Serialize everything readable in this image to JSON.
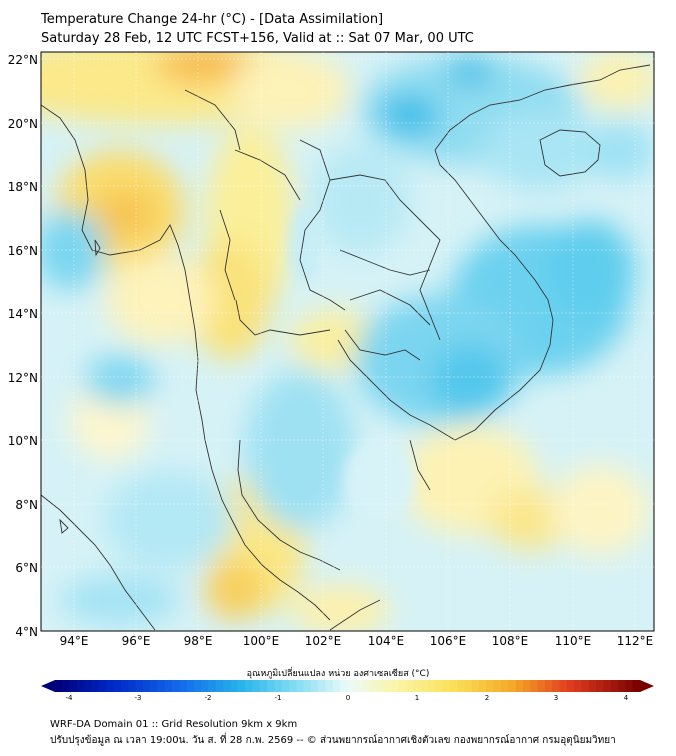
{
  "header": {
    "title_line1": "Temperature Change 24-hr (°C) - [Data Assimilation]",
    "title_line2": "Saturday 28 Feb, 12 UTC FCST+156, Valid at :: Sat 07 Mar, 00 UTC"
  },
  "map": {
    "lat_labels": [
      "22°N",
      "20°N",
      "18°N",
      "16°N",
      "14°N",
      "12°N",
      "10°N",
      "8°N",
      "6°N",
      "4°N"
    ],
    "lon_labels": [
      "94°E",
      "96°E",
      "98°E",
      "100°E",
      "102°E",
      "104°E",
      "106°E",
      "108°E",
      "110°E",
      "112°E"
    ]
  },
  "colorbar": {
    "label": "อุณหภูมิเปลี่ยนแปลง หน่วย องศาเซลเซียส (°C)",
    "ticks": [
      "-4",
      "-3",
      "-2",
      "-1",
      "0",
      "1",
      "2",
      "3",
      "4"
    ],
    "min": -4,
    "max": 4
  },
  "footer": {
    "line1": "WRF-DA Domain 01 :: Grid Resolution 9km x 9km",
    "line2": "ปรับปรุงข้อมูล ณ เวลา 19:00น. วัน ส. ที่ 28 ก.พ. 2569 -- © ส่วนพยากรณ์อากาศเชิงตัวเลข กองพยากรณ์อากาศ กรมอุตุนิยมวิทยา"
  }
}
